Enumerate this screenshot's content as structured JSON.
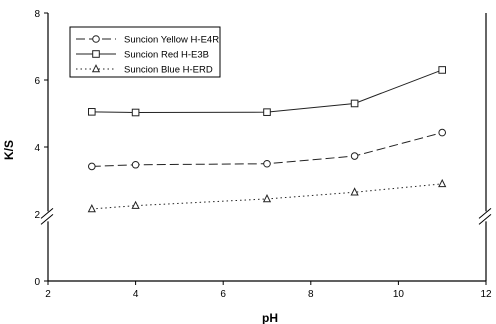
{
  "chart_data": {
    "type": "line",
    "xlabel": "pH",
    "ylabel": "K/S",
    "xlim": [
      2,
      12
    ],
    "ylim": [
      0,
      8
    ],
    "y_break": [
      0,
      2
    ],
    "x_ticks": [
      2,
      4,
      6,
      8,
      10,
      12
    ],
    "y_ticks": [
      0,
      2,
      4,
      6,
      8
    ],
    "legend_position": "top-left",
    "grid": false,
    "series": [
      {
        "name": "Suncion Yellow H-E4R",
        "marker": "circle",
        "dash": "dashed",
        "x": [
          3,
          4,
          7,
          9,
          11
        ],
        "y": [
          3.42,
          3.47,
          3.5,
          3.73,
          4.43
        ]
      },
      {
        "name": "Suncion Red H-E3B",
        "marker": "square",
        "dash": "solid",
        "x": [
          3,
          4,
          7,
          9,
          11
        ],
        "y": [
          5.05,
          5.03,
          5.04,
          5.3,
          6.3
        ]
      },
      {
        "name": "Suncion Blue H-ERD",
        "marker": "triangle",
        "dash": "dotted",
        "x": [
          3,
          4,
          7,
          9,
          11
        ],
        "y": [
          2.15,
          2.25,
          2.45,
          2.65,
          2.9
        ]
      }
    ]
  }
}
